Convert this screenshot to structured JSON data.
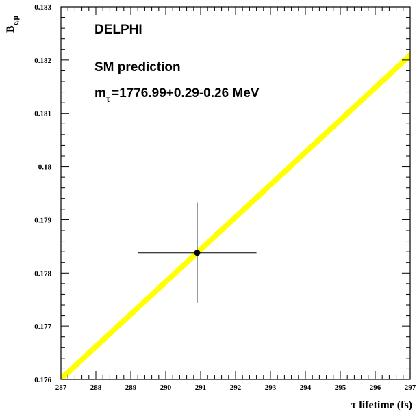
{
  "chart_data": {
    "type": "line",
    "xlabel": "τ lifetime (fs)",
    "ylabel": {
      "main": "B",
      "sub": "e,μ"
    },
    "xlim": [
      287,
      297
    ],
    "ylim": [
      0.176,
      0.183
    ],
    "x_ticks": [
      "287",
      "288",
      "289",
      "290",
      "291",
      "292",
      "293",
      "294",
      "295",
      "296",
      "297"
    ],
    "y_ticks": [
      "0.176",
      "0.177",
      "0.178",
      "0.179",
      "0.18",
      "0.181",
      "0.182",
      "0.183"
    ],
    "band": {
      "name": "SM prediction",
      "color": "#ffff00",
      "x": [
        287,
        297
      ],
      "y_low": [
        0.17594,
        0.18202
      ],
      "y_high": [
        0.17608,
        0.18216
      ]
    },
    "measurement": {
      "x": 290.9,
      "y": 0.17838,
      "x_err": [
        1.7,
        1.7
      ],
      "y_err": [
        0.00094,
        0.00094
      ]
    },
    "annotations": {
      "experiment": "DELPHI",
      "model": "SM prediction",
      "mass_main": "m",
      "mass_sub": "τ",
      "mass_value": "=1776.99+0.29-0.26 MeV"
    },
    "grid": false
  }
}
